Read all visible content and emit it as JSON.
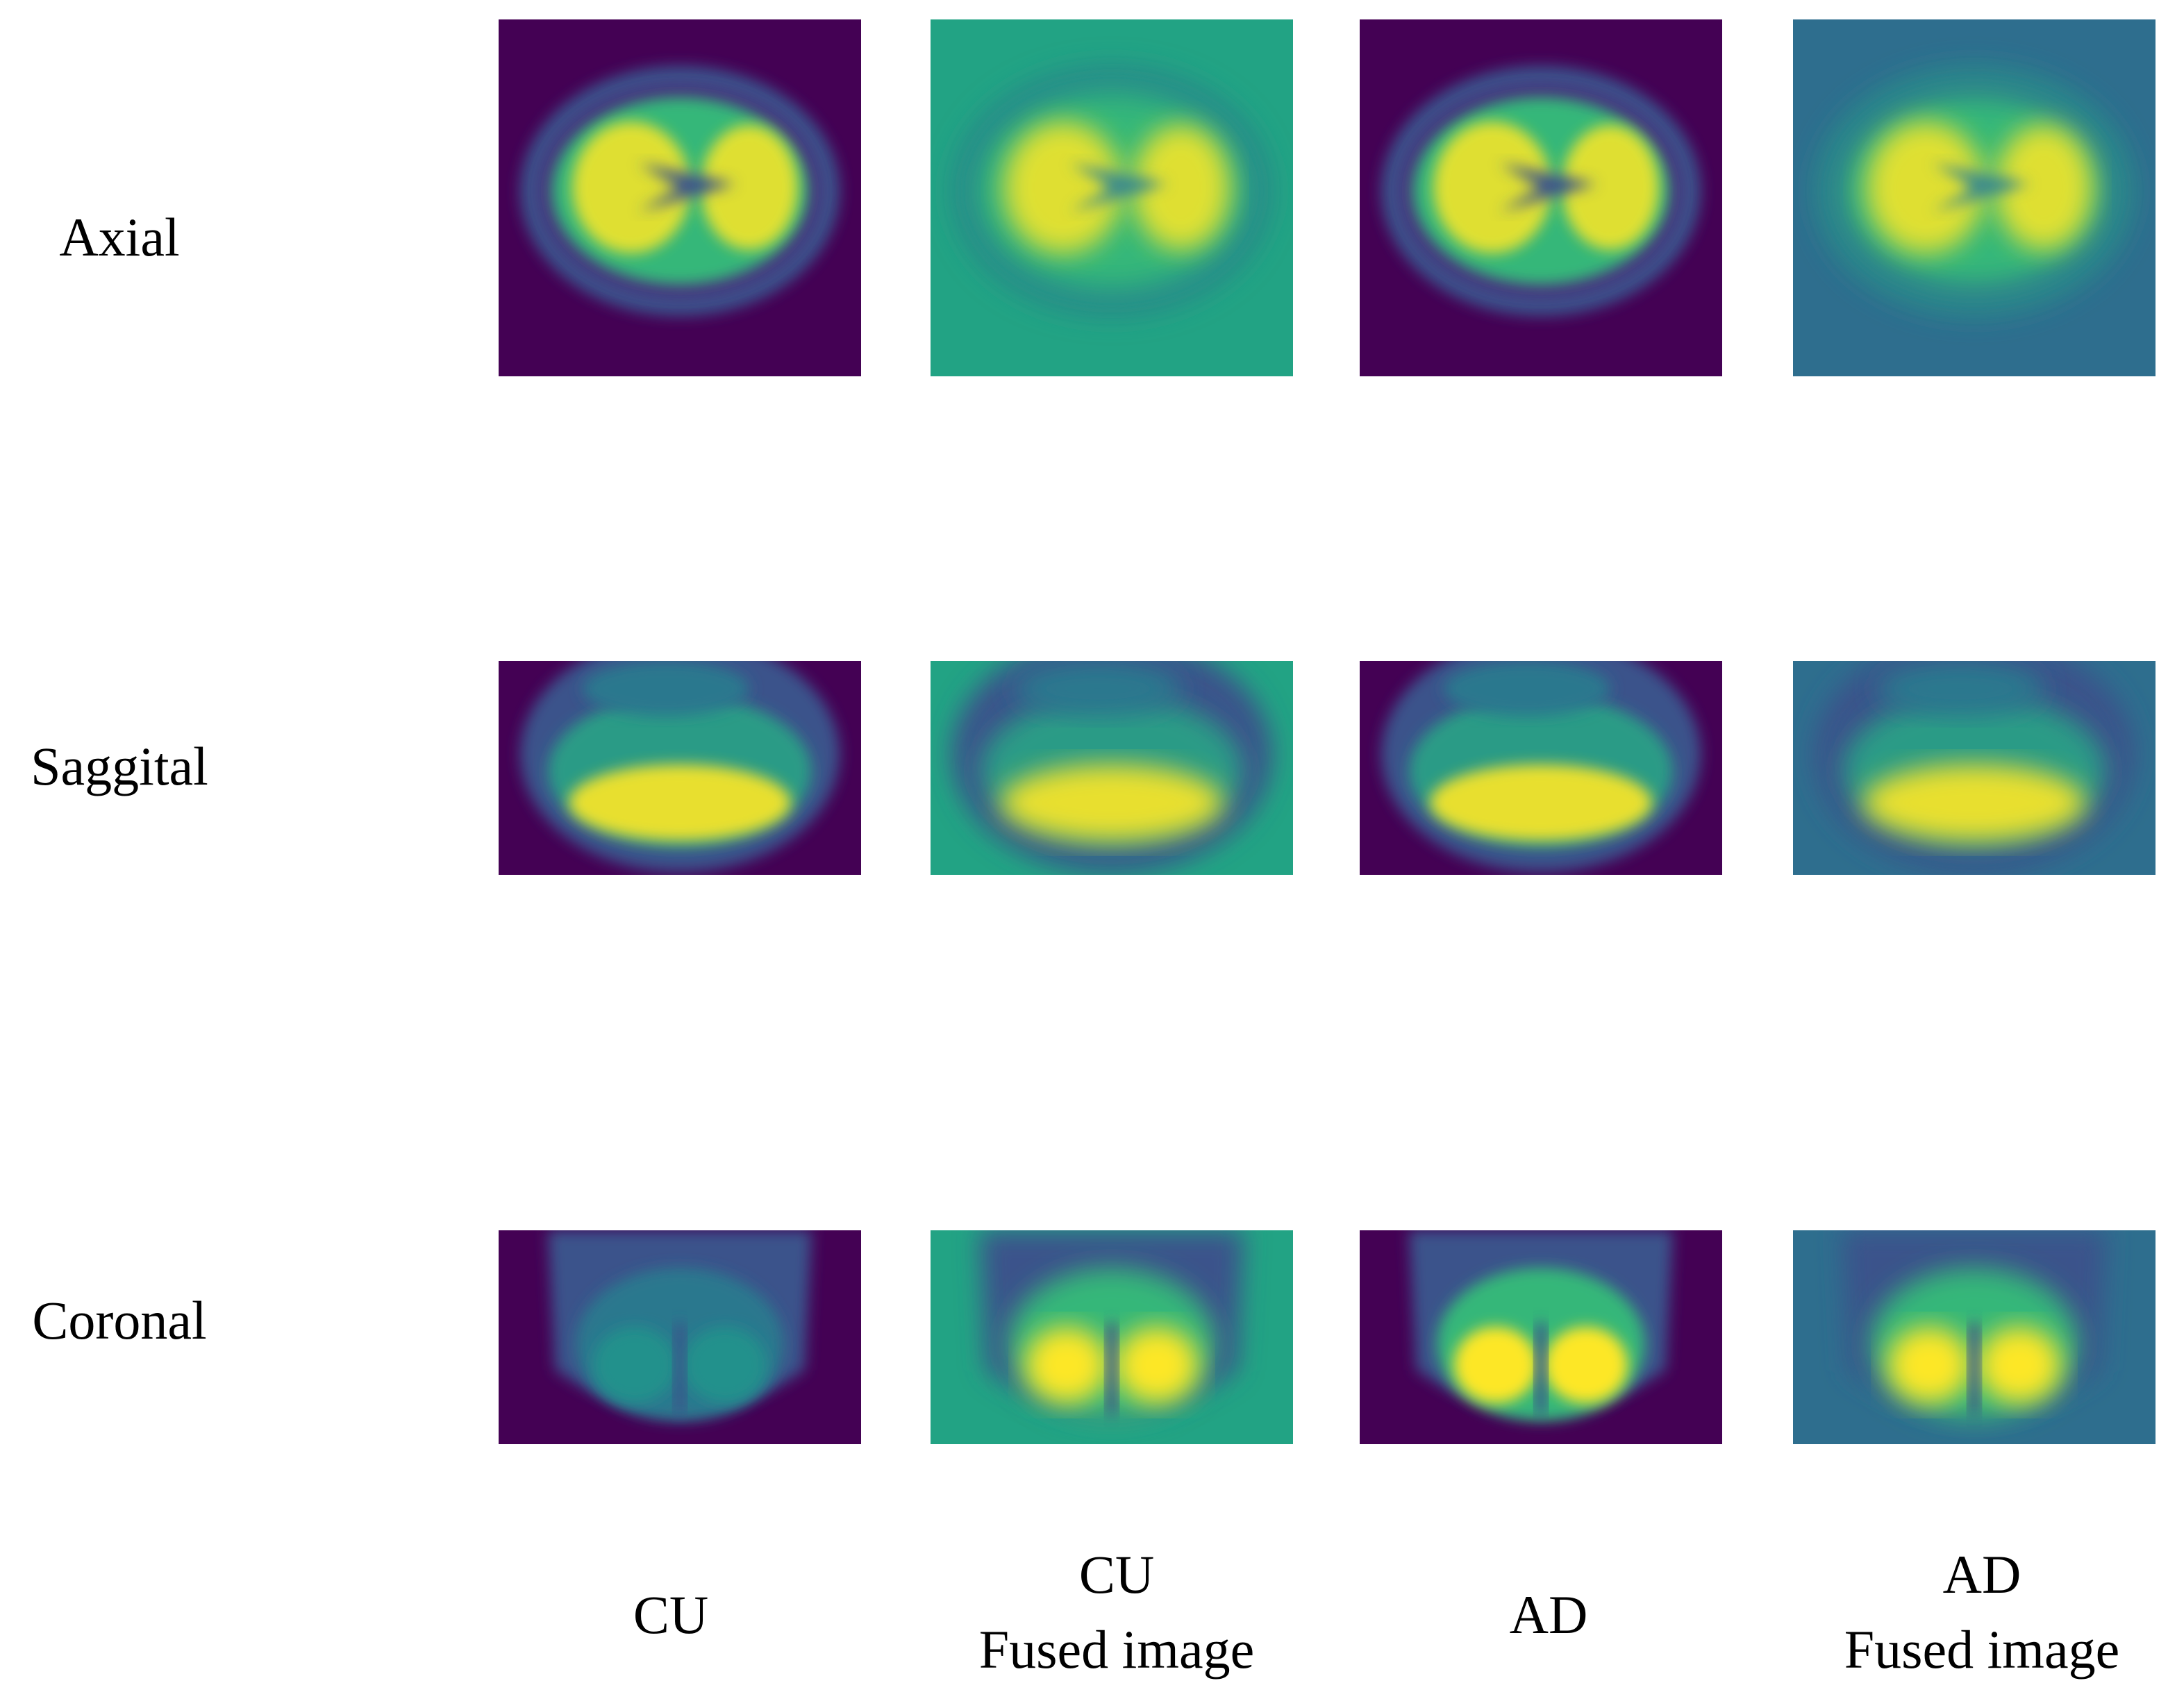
{
  "rows": [
    "Axial",
    "Saggital",
    "Coronal"
  ],
  "columns": [
    [
      "CU"
    ],
    [
      "CU",
      "Fused image"
    ],
    [
      "AD"
    ],
    [
      "AD",
      "Fused image"
    ]
  ]
}
